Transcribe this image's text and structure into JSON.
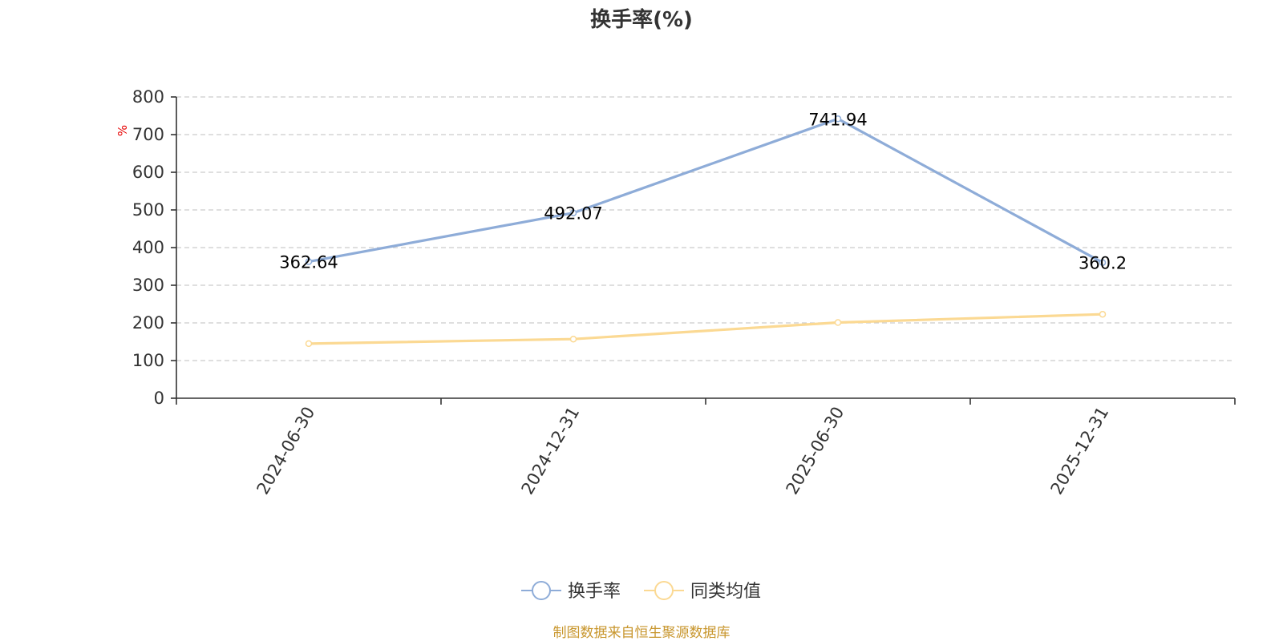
{
  "chart_data": {
    "type": "line",
    "title": "换手率(%)",
    "ylabel": "%",
    "categories": [
      "2024-06-30",
      "2024-12-31",
      "2025-06-30",
      "2025-12-31"
    ],
    "ylim": [
      0,
      800
    ],
    "yticks": [
      0,
      100,
      200,
      300,
      400,
      500,
      600,
      700,
      800
    ],
    "grid": true,
    "legend_position": "bottom",
    "series": [
      {
        "name": "换手率",
        "color": "#8eacd8",
        "values": [
          362.64,
          492.07,
          741.94,
          360.2
        ],
        "data_labels": [
          "362.64",
          "492.07",
          "741.94",
          "360.2"
        ]
      },
      {
        "name": "同类均值",
        "color": "#fbd993",
        "values": [
          145,
          157,
          201,
          223
        ]
      }
    ],
    "source": "制图数据来自恒生聚源数据库"
  }
}
